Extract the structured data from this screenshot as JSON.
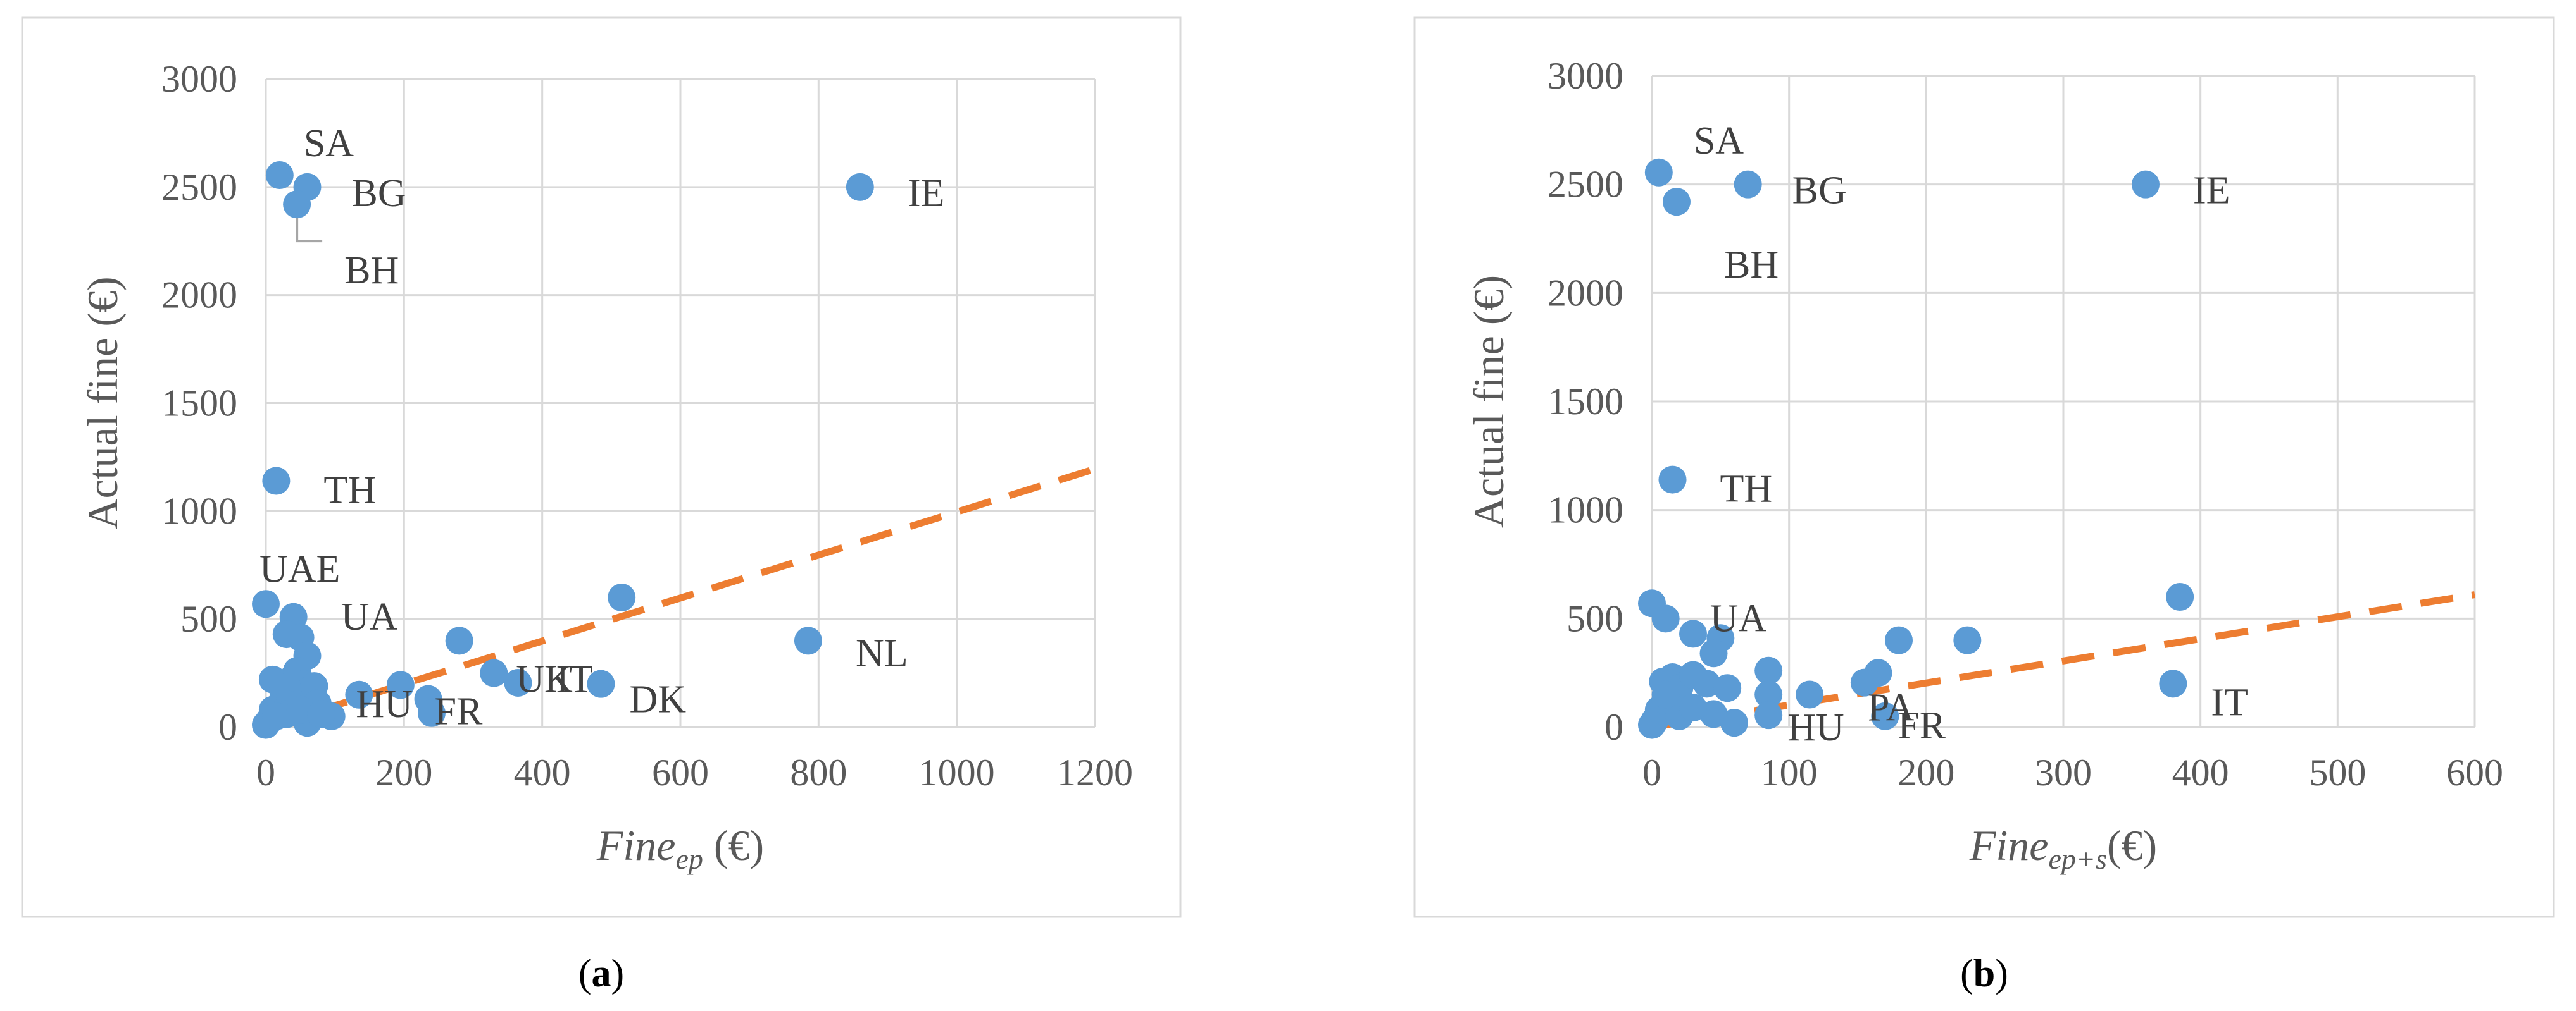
{
  "chart_data": [
    {
      "type": "scatter",
      "panel": "a",
      "caption_open": "(",
      "caption_letter": "a",
      "caption_close": ")",
      "xlabel_main": "Fine",
      "xlabel_sub": "ep",
      "xlabel_unit": " (€)",
      "ylabel": "Actual fine (€)",
      "xlim": [
        0,
        1200
      ],
      "ylim": [
        0,
        3000
      ],
      "xticks": [
        0,
        200,
        400,
        600,
        800,
        1000,
        1200
      ],
      "yticks": [
        0,
        500,
        1000,
        1500,
        2000,
        2500,
        3000
      ],
      "grid": true,
      "marker_color": "#5B9BD5",
      "trend_color": "#ED7D31",
      "trendline": [
        [
          0,
          0
        ],
        [
          1200,
          1195
        ]
      ],
      "points": [
        [
          20,
          2555
        ],
        [
          60,
          2500
        ],
        [
          45,
          2420
        ],
        [
          860,
          2500
        ],
        [
          15,
          1140
        ],
        [
          0,
          570
        ],
        [
          40,
          510
        ],
        [
          30,
          430
        ],
        [
          50,
          415
        ],
        [
          60,
          330
        ],
        [
          515,
          600
        ],
        [
          785,
          400
        ],
        [
          485,
          200
        ],
        [
          330,
          250
        ],
        [
          365,
          205
        ],
        [
          280,
          400
        ],
        [
          195,
          195
        ],
        [
          135,
          150
        ],
        [
          235,
          130
        ],
        [
          240,
          65
        ],
        [
          95,
          50
        ],
        [
          60,
          20
        ],
        [
          0,
          10
        ],
        [
          5,
          30
        ],
        [
          10,
          80
        ],
        [
          20,
          100
        ],
        [
          10,
          220
        ],
        [
          25,
          170
        ],
        [
          35,
          140
        ],
        [
          40,
          230
        ],
        [
          45,
          260
        ],
        [
          55,
          200
        ],
        [
          60,
          160
        ],
        [
          70,
          190
        ],
        [
          75,
          110
        ],
        [
          30,
          60
        ],
        [
          15,
          50
        ],
        [
          50,
          80
        ],
        [
          80,
          60
        ]
      ],
      "labels": [
        {
          "text": "SA",
          "x": 20,
          "y": 2555
        },
        {
          "text": "BG",
          "x": 60,
          "y": 2500
        },
        {
          "text": "BH",
          "x": 45,
          "y": 2420
        },
        {
          "text": "IE",
          "x": 860,
          "y": 2500
        },
        {
          "text": "TH",
          "x": 15,
          "y": 1140
        },
        {
          "text": "UAE",
          "x": 0,
          "y": 570
        },
        {
          "text": "UA",
          "x": 40,
          "y": 510
        },
        {
          "text": "NL",
          "x": 785,
          "y": 400
        },
        {
          "text": "IT",
          "x": 365,
          "y": 205
        },
        {
          "text": "DK",
          "x": 485,
          "y": 200
        },
        {
          "text": "UK",
          "x": 330,
          "y": 250
        },
        {
          "text": "FR",
          "x": 235,
          "y": 130
        },
        {
          "text": "HU",
          "x": 135,
          "y": 150
        }
      ]
    },
    {
      "type": "scatter",
      "panel": "b",
      "caption_open": "(",
      "caption_letter": "b",
      "caption_close": ")",
      "xlabel_main": "Fine",
      "xlabel_sub": "ep+s",
      "xlabel_unit": "(€)",
      "ylabel": "Actual fine (€)",
      "xlim": [
        0,
        600
      ],
      "ylim": [
        0,
        3000
      ],
      "xticks": [
        0,
        100,
        200,
        300,
        400,
        500,
        600
      ],
      "yticks": [
        0,
        500,
        1000,
        1500,
        2000,
        2500,
        3000
      ],
      "grid": true,
      "marker_color": "#5B9BD5",
      "trend_color": "#ED7D31",
      "trendline": [
        [
          0,
          0
        ],
        [
          600,
          610
        ]
      ],
      "points": [
        [
          5,
          2555
        ],
        [
          70,
          2500
        ],
        [
          18,
          2420
        ],
        [
          360,
          2500
        ],
        [
          15,
          1140
        ],
        [
          0,
          570
        ],
        [
          10,
          500
        ],
        [
          30,
          430
        ],
        [
          50,
          410
        ],
        [
          45,
          340
        ],
        [
          385,
          600
        ],
        [
          380,
          200
        ],
        [
          230,
          400
        ],
        [
          180,
          400
        ],
        [
          165,
          250
        ],
        [
          155,
          205
        ],
        [
          115,
          150
        ],
        [
          85,
          260
        ],
        [
          85,
          150
        ],
        [
          170,
          50
        ],
        [
          85,
          55
        ],
        [
          60,
          20
        ],
        [
          0,
          10
        ],
        [
          2,
          30
        ],
        [
          5,
          80
        ],
        [
          10,
          120
        ],
        [
          8,
          210
        ],
        [
          15,
          230
        ],
        [
          20,
          180
        ],
        [
          30,
          240
        ],
        [
          40,
          200
        ],
        [
          55,
          180
        ],
        [
          45,
          60
        ],
        [
          20,
          50
        ],
        [
          30,
          90
        ],
        [
          10,
          150
        ]
      ],
      "labels": [
        {
          "text": "SA",
          "x": 5,
          "y": 2555
        },
        {
          "text": "BG",
          "x": 70,
          "y": 2500
        },
        {
          "text": "BH",
          "x": 18,
          "y": 2420
        },
        {
          "text": "IE",
          "x": 360,
          "y": 2500
        },
        {
          "text": "TH",
          "x": 15,
          "y": 1140
        },
        {
          "text": "UA",
          "x": 10,
          "y": 500
        },
        {
          "text": "IT",
          "x": 380,
          "y": 200
        },
        {
          "text": "PA",
          "x": 155,
          "y": 205
        },
        {
          "text": "FR",
          "x": 170,
          "y": 50
        },
        {
          "text": "HU",
          "x": 85,
          "y": 55
        }
      ]
    }
  ]
}
